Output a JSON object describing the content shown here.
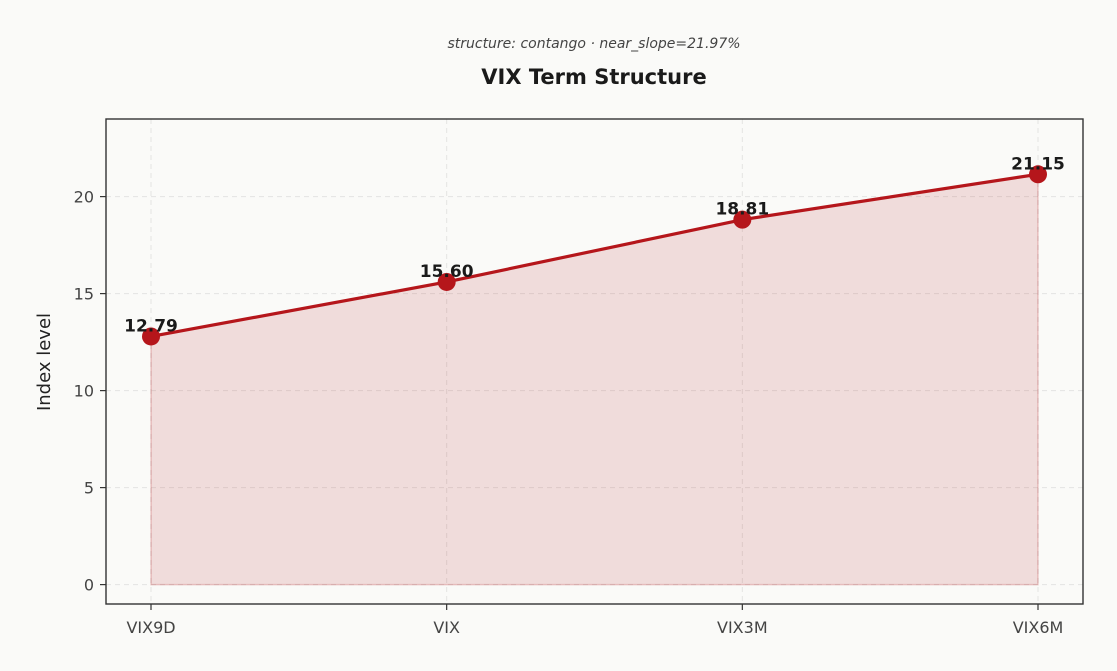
{
  "chart_data": {
    "type": "area",
    "subtitle": "structure: contango · near_slope=21.97%",
    "title": "VIX Term Structure",
    "xlabel": "",
    "ylabel": "Index level",
    "categories": [
      "VIX9D",
      "VIX",
      "VIX3M",
      "VIX6M"
    ],
    "values": [
      12.79,
      15.6,
      18.81,
      21.15
    ],
    "value_labels": [
      "12.79",
      "15.60",
      "18.81",
      "21.15"
    ],
    "ylim": [
      -1,
      24
    ],
    "yticks": [
      0,
      5,
      10,
      15,
      20
    ],
    "ytick_labels": [
      "0",
      "5",
      "10",
      "15",
      "20"
    ],
    "grid": true,
    "colors": {
      "line": "#b5161b",
      "marker": "#b5161b",
      "fill": "#b5161b",
      "fill_opacity": 0.13
    }
  }
}
